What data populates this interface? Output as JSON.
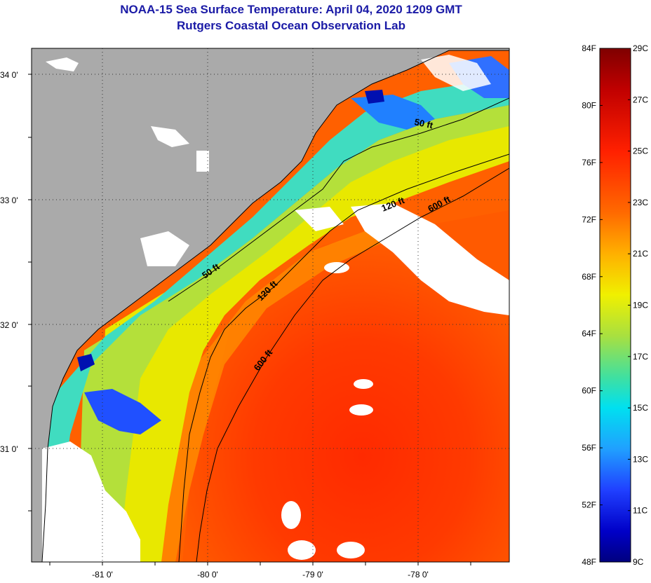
{
  "title": "NOAA-15 Sea Surface Temperature:  April 04, 2020 1209 GMT",
  "subtitle": "Rutgers Coastal Ocean Observation Lab",
  "lat_labels": [
    "34 0'",
    "33 0'",
    "32 0'",
    "31 0'"
  ],
  "lon_labels": [
    "-81 0'",
    "-80 0'",
    "-79 0'",
    "-78 0'"
  ],
  "contour_labels": {
    "ft50_north": "50 ft",
    "ft50_south": "50 ft",
    "ft120_north": "120 ft",
    "ft120_south": "120 ft",
    "ft600_north": "600 ft",
    "ft600_south": "600 ft"
  },
  "colorbar": {
    "f_labels": [
      "84F",
      "80F",
      "76F",
      "72F",
      "68F",
      "64F",
      "60F",
      "56F",
      "52F",
      "48F"
    ],
    "c_labels": [
      "29C",
      "27C",
      "25C",
      "23C",
      "21C",
      "19C",
      "17C",
      "15C",
      "13C",
      "11C",
      "9C"
    ],
    "colors": [
      "#7f0000",
      "#c00000",
      "#ff2000",
      "#ff6a00",
      "#ffb000",
      "#f0f000",
      "#a8e040",
      "#40e0a0",
      "#00e0f0",
      "#20a0ff",
      "#2040ff",
      "#0000c8",
      "#00007f"
    ]
  },
  "colors": {
    "land": "#aaaaaa",
    "cloud": "#ffffff",
    "title": "#1a1aa6"
  }
}
